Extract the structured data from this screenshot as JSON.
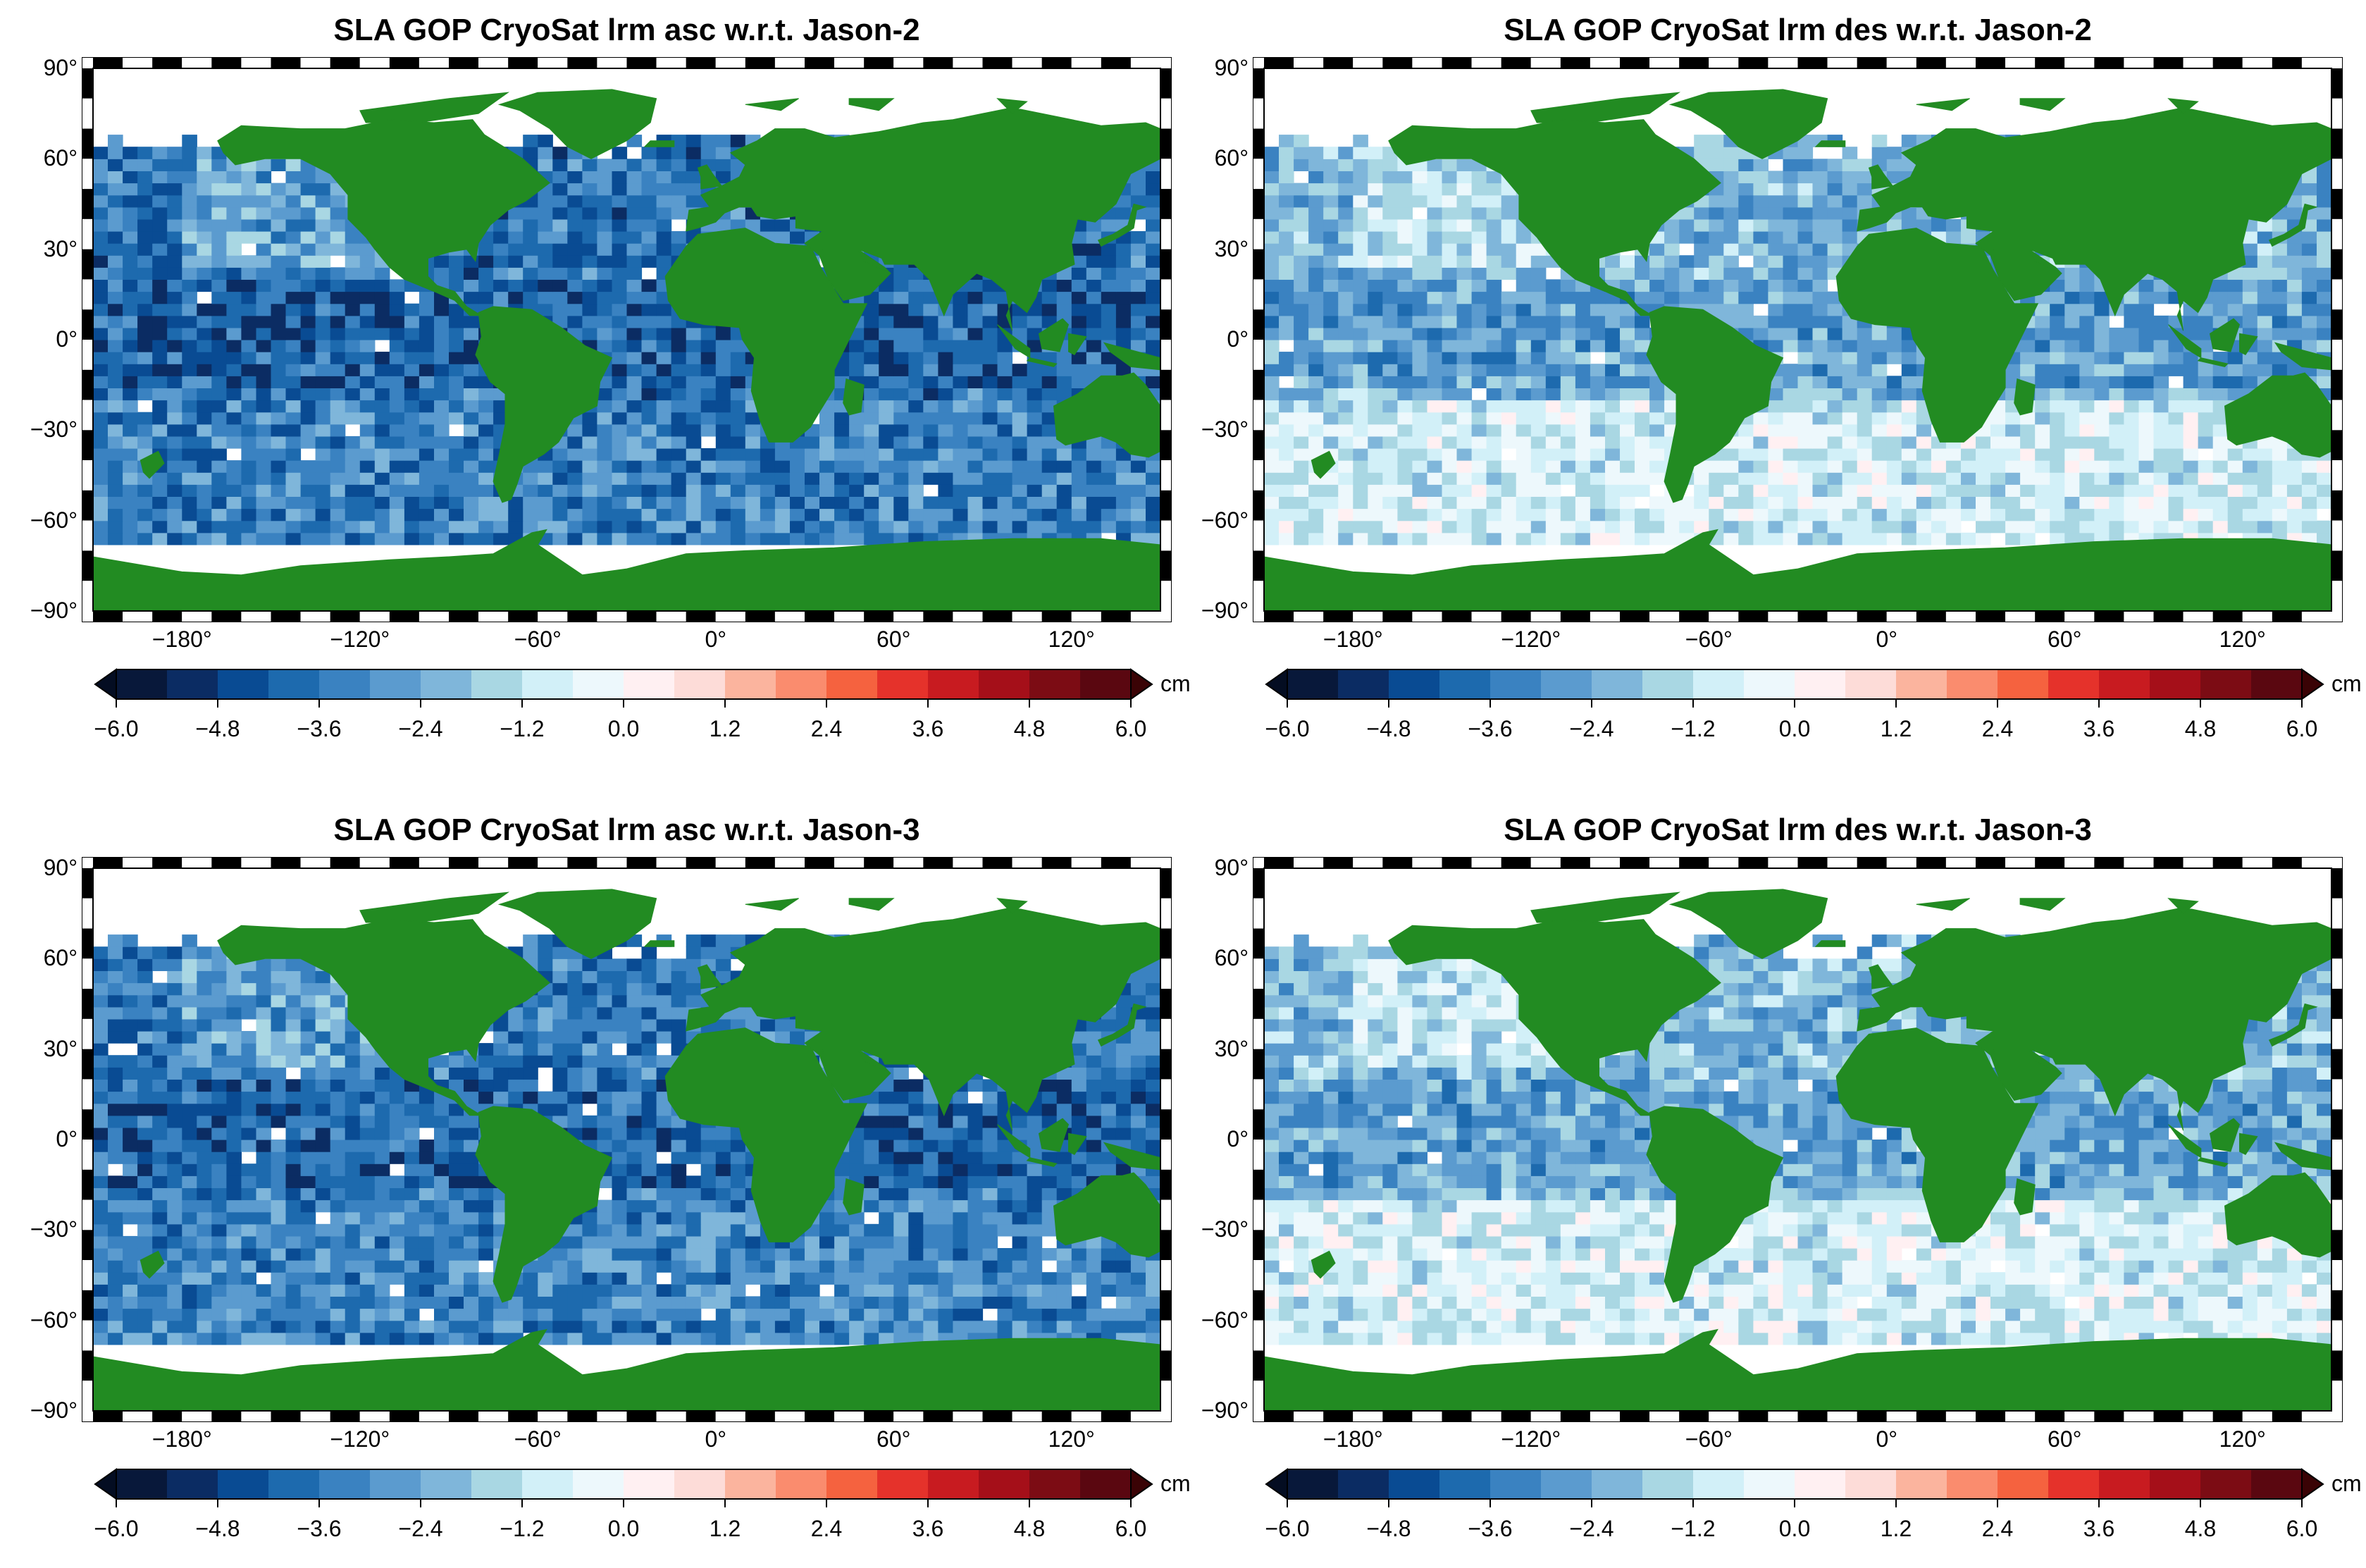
{
  "figure": {
    "panels": [
      {
        "title": "SLA GOP CryoSat lrm asc w.r.t. Jason-2",
        "mean_level": -3.6,
        "spread": 1.3
      },
      {
        "title": "SLA GOP CryoSat lrm des w.r.t. Jason-2",
        "mean_level": -2.2,
        "spread": 1.1
      },
      {
        "title": "SLA GOP CryoSat lrm asc w.r.t. Jason-3",
        "mean_level": -3.5,
        "spread": 1.2
      },
      {
        "title": "SLA GOP CryoSat lrm des w.r.t. Jason-3",
        "mean_level": -2.1,
        "spread": 1.1
      }
    ],
    "lat_ticks": [
      "90°",
      "60°",
      "30°",
      "0°",
      "−30°",
      "−60°",
      "−90°"
    ],
    "lon_ticks": [
      "−180°",
      "−120°",
      "−60°",
      "0°",
      "60°",
      "120°"
    ],
    "colorbar": {
      "unit": "cm",
      "min": -6.0,
      "max": 6.0,
      "step": 0.6,
      "tick_labels": [
        "−6.0",
        "−4.8",
        "−3.6",
        "−2.4",
        "−1.2",
        "0.0",
        "1.2",
        "2.4",
        "3.6",
        "4.8",
        "6.0"
      ],
      "colors": [
        "#08183a",
        "#0b2c63",
        "#094b93",
        "#1d6aae",
        "#3a82c1",
        "#5b9bcf",
        "#7fb6da",
        "#a9d7e3",
        "#d2f0f8",
        "#edf8fc",
        "#fff0f2",
        "#fddcd8",
        "#fbb49e",
        "#fa8c6e",
        "#f5623f",
        "#e5322b",
        "#c81b20",
        "#a50f19",
        "#7c0c14",
        "#5a0710"
      ],
      "under_color": "#040d22",
      "over_color": "#3a0305"
    },
    "land_color": "#228b22",
    "ocean_missing_color": "#ffffff"
  }
}
